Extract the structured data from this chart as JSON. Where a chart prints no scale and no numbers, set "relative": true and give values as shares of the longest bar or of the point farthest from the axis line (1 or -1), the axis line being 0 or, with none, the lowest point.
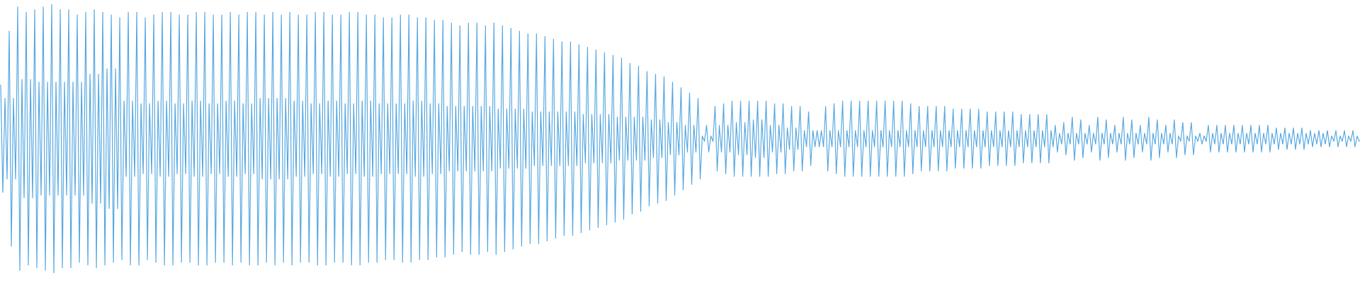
{
  "chart_data": {
    "type": "line",
    "relative": true,
    "color": "#5dabe2",
    "categories": [
      null,
      null,
      null,
      null,
      null,
      null,
      null,
      null,
      null,
      null,
      null,
      null,
      null,
      null,
      null,
      null,
      null,
      null,
      null,
      null,
      null,
      null,
      null,
      null,
      null,
      null,
      null,
      null,
      null,
      null,
      null,
      null,
      null,
      null,
      null,
      null,
      null,
      null,
      null,
      null,
      null,
      null,
      null,
      null,
      null,
      null,
      null,
      null,
      null,
      null,
      null,
      null,
      null,
      null,
      null,
      null,
      null,
      null,
      null,
      null,
      null,
      null,
      null,
      null,
      null,
      null,
      null,
      null,
      null,
      null,
      null,
      null,
      null,
      null,
      null,
      null,
      null,
      null,
      null,
      null,
      null,
      null,
      null,
      null,
      null,
      null,
      null,
      null,
      null,
      null,
      null,
      null,
      null,
      null,
      null,
      null,
      null,
      null,
      null,
      null,
      null,
      null,
      null,
      null,
      null,
      null,
      null,
      null,
      null,
      null,
      null,
      null,
      null,
      null,
      null,
      null,
      null,
      null,
      null,
      null,
      null,
      null,
      null,
      null,
      null,
      null,
      null,
      null,
      null,
      null,
      null,
      null,
      null,
      null,
      null,
      null,
      null,
      null,
      null,
      null,
      null,
      null,
      null,
      null,
      null,
      null,
      null,
      null,
      null,
      null,
      null,
      null,
      null,
      null,
      null,
      null,
      null,
      null,
      null,
      null,
      null,
      null,
      null,
      null,
      null,
      null,
      null,
      null,
      null,
      null,
      null,
      null,
      null,
      null,
      null,
      null,
      null,
      null,
      null,
      null,
      null,
      null,
      null,
      null,
      null,
      null,
      null,
      null,
      null,
      null,
      null,
      null,
      null,
      null,
      null,
      null,
      null,
      null,
      null,
      null,
      null,
      null,
      null,
      null,
      null,
      null,
      null,
      null,
      null,
      null,
      null,
      null,
      null,
      null,
      null,
      null,
      null,
      null,
      null,
      null,
      null,
      null,
      null,
      null,
      null,
      null,
      null,
      null,
      null,
      null,
      null,
      null,
      null,
      null,
      null,
      null,
      null,
      null,
      null,
      null,
      null,
      null,
      null,
      null,
      null,
      null,
      null,
      null,
      null,
      null,
      null,
      null,
      null,
      null,
      null,
      null,
      null,
      null,
      null,
      null,
      null,
      null,
      null,
      null,
      null,
      null,
      null,
      null,
      null,
      null,
      null,
      null,
      null,
      null,
      null,
      null,
      null,
      null,
      null,
      null,
      null,
      null,
      null,
      null,
      null,
      null,
      null,
      null,
      null,
      null,
      null,
      null,
      null,
      null,
      null,
      null,
      null,
      null,
      null,
      null,
      null,
      null,
      null,
      null,
      null,
      null,
      null,
      null,
      null,
      null,
      null,
      null,
      null,
      null,
      null,
      null,
      null,
      null,
      null,
      null,
      null,
      null,
      null,
      null,
      null,
      null,
      null,
      null,
      null,
      null,
      null,
      null,
      null,
      null,
      null,
      null,
      null,
      null,
      null,
      null,
      null,
      null,
      null,
      null,
      null,
      null,
      null,
      null,
      null,
      null,
      null,
      null,
      null,
      null,
      null,
      null,
      null,
      null,
      null,
      null,
      null,
      null,
      null,
      null,
      null,
      null,
      null,
      null,
      null,
      null,
      null,
      null,
      null,
      null,
      null,
      null,
      null,
      null,
      null,
      null,
      null,
      null,
      null,
      null,
      null,
      null,
      null,
      null,
      null,
      null,
      null,
      null,
      null,
      null,
      null,
      null,
      null,
      null,
      null,
      null,
      null,
      null,
      null,
      null,
      null,
      null,
      null,
      null,
      null,
      null,
      null,
      null,
      null,
      null,
      null,
      null,
      null,
      null,
      null,
      null,
      null,
      null,
      null,
      null,
      null,
      null,
      null,
      null,
      null,
      null,
      null,
      null,
      null,
      null,
      null,
      null,
      null,
      null,
      null,
      null,
      null,
      null,
      null,
      null,
      null,
      null,
      null,
      null,
      null,
      null,
      null,
      null,
      null,
      null,
      null,
      null,
      null,
      null,
      null,
      null,
      null,
      null,
      null,
      null,
      null,
      null,
      null,
      null,
      null,
      null,
      null,
      null,
      null,
      null,
      null,
      null,
      null,
      null,
      null,
      null,
      null,
      null,
      null,
      null,
      null,
      null,
      null,
      null,
      null,
      null,
      null,
      null,
      null,
      null,
      null,
      null,
      null,
      null,
      null,
      null,
      null,
      null,
      null,
      null,
      null,
      null,
      null,
      null,
      null,
      null,
      null,
      null,
      null,
      null,
      null,
      null,
      null,
      null,
      null,
      null,
      null,
      null,
      null,
      null,
      null,
      null,
      null,
      null,
      null,
      null,
      null,
      null,
      null,
      null,
      null,
      null,
      null,
      null,
      null,
      null,
      null,
      null,
      null,
      null,
      null,
      null,
      null,
      null,
      null,
      null,
      null,
      null,
      null,
      null,
      null,
      null,
      null,
      null,
      null,
      null,
      null,
      null,
      null,
      null,
      null,
      null,
      null,
      null,
      null,
      null,
      null,
      null,
      null,
      null,
      null,
      null,
      null,
      null,
      null,
      null,
      null,
      null,
      null,
      null,
      null,
      null,
      null,
      null,
      null,
      null,
      null,
      null,
      null,
      null,
      null,
      null,
      null,
      null,
      null,
      null,
      null,
      null,
      null,
      null,
      null,
      null,
      null,
      null,
      null,
      null,
      null,
      null,
      null,
      null,
      null,
      null,
      null,
      null,
      null,
      null,
      null,
      null,
      null,
      null,
      null,
      null,
      null,
      null,
      null,
      null,
      null,
      null,
      null,
      null,
      null,
      null,
      null,
      null,
      null,
      null
    ],
    "values": [
      0.7,
      0.3,
      0.65,
      0.35,
      0.9,
      0.1,
      0.65,
      0.35,
      0.99,
      0.01,
      0.72,
      0.28,
      0.97,
      0.03,
      0.72,
      0.28,
      0.98,
      0.02,
      0.71,
      0.29,
      0.99,
      0.01,
      0.71,
      0.29,
      1.0,
      0.0,
      0.71,
      0.29,
      0.98,
      0.02,
      0.71,
      0.29,
      0.98,
      0.02,
      0.71,
      0.29,
      0.96,
      0.04,
      0.71,
      0.29,
      0.97,
      0.03,
      0.74,
      0.26,
      0.98,
      0.02,
      0.74,
      0.26,
      0.97,
      0.03,
      0.76,
      0.24,
      0.96,
      0.04,
      0.76,
      0.24,
      0.95,
      0.05,
      0.64,
      0.36,
      0.97,
      0.03,
      0.64,
      0.36,
      0.97,
      0.03,
      0.63,
      0.37,
      0.95,
      0.05,
      0.63,
      0.37,
      0.96,
      0.04,
      0.64,
      0.36,
      0.97,
      0.03,
      0.64,
      0.36,
      0.97,
      0.03,
      0.63,
      0.37,
      0.96,
      0.04,
      0.63,
      0.37,
      0.96,
      0.04,
      0.64,
      0.36,
      0.97,
      0.03,
      0.64,
      0.36,
      0.97,
      0.03,
      0.63,
      0.37,
      0.96,
      0.04,
      0.63,
      0.37,
      0.96,
      0.04,
      0.64,
      0.36,
      0.97,
      0.03,
      0.64,
      0.36,
      0.96,
      0.04,
      0.63,
      0.37,
      0.97,
      0.03,
      0.63,
      0.37,
      0.97,
      0.03,
      0.65,
      0.35,
      0.96,
      0.04,
      0.65,
      0.35,
      0.97,
      0.03,
      0.65,
      0.35,
      0.96,
      0.04,
      0.65,
      0.35,
      0.97,
      0.03,
      0.64,
      0.36,
      0.96,
      0.04,
      0.64,
      0.36,
      0.96,
      0.04,
      0.63,
      0.37,
      0.97,
      0.03,
      0.63,
      0.37,
      0.97,
      0.03,
      0.64,
      0.36,
      0.96,
      0.04,
      0.64,
      0.36,
      0.96,
      0.04,
      0.63,
      0.37,
      0.97,
      0.03,
      0.63,
      0.37,
      0.97,
      0.03,
      0.64,
      0.36,
      0.96,
      0.04,
      0.64,
      0.36,
      0.96,
      0.04,
      0.63,
      0.37,
      0.95,
      0.05,
      0.63,
      0.37,
      0.95,
      0.05,
      0.63,
      0.37,
      0.96,
      0.04,
      0.63,
      0.37,
      0.96,
      0.04,
      0.64,
      0.36,
      0.95,
      0.05,
      0.64,
      0.36,
      0.95,
      0.05,
      0.63,
      0.37,
      0.94,
      0.06,
      0.63,
      0.37,
      0.94,
      0.06,
      0.62,
      0.38,
      0.93,
      0.07,
      0.62,
      0.38,
      0.92,
      0.08,
      0.62,
      0.38,
      0.93,
      0.07,
      0.62,
      0.38,
      0.93,
      0.07,
      0.62,
      0.38,
      0.92,
      0.08,
      0.62,
      0.38,
      0.93,
      0.07,
      0.61,
      0.39,
      0.92,
      0.08,
      0.61,
      0.39,
      0.91,
      0.09,
      0.61,
      0.39,
      0.9,
      0.1,
      0.61,
      0.39,
      0.89,
      0.11,
      0.6,
      0.4,
      0.89,
      0.11,
      0.6,
      0.4,
      0.88,
      0.12,
      0.6,
      0.4,
      0.87,
      0.13,
      0.6,
      0.4,
      0.86,
      0.14,
      0.6,
      0.4,
      0.86,
      0.14,
      0.6,
      0.4,
      0.85,
      0.15,
      0.59,
      0.41,
      0.84,
      0.16,
      0.59,
      0.41,
      0.83,
      0.17,
      0.59,
      0.41,
      0.82,
      0.18,
      0.59,
      0.41,
      0.81,
      0.19,
      0.58,
      0.42,
      0.8,
      0.2,
      0.58,
      0.42,
      0.78,
      0.22,
      0.58,
      0.42,
      0.77,
      0.23,
      0.58,
      0.42,
      0.75,
      0.25,
      0.57,
      0.43,
      0.74,
      0.26,
      0.57,
      0.43,
      0.73,
      0.27,
      0.56,
      0.44,
      0.71,
      0.29,
      0.56,
      0.44,
      0.69,
      0.31,
      0.55,
      0.45,
      0.67,
      0.33,
      0.55,
      0.45,
      0.65,
      0.35,
      0.51,
      0.49,
      0.55,
      0.45,
      0.51,
      0.49,
      0.62,
      0.38,
      0.55,
      0.45,
      0.63,
      0.37,
      0.55,
      0.45,
      0.64,
      0.36,
      0.56,
      0.44,
      0.64,
      0.36,
      0.56,
      0.44,
      0.64,
      0.36,
      0.57,
      0.43,
      0.64,
      0.36,
      0.57,
      0.43,
      0.64,
      0.36,
      0.55,
      0.45,
      0.63,
      0.37,
      0.55,
      0.45,
      0.63,
      0.37,
      0.54,
      0.46,
      0.62,
      0.38,
      0.54,
      0.46,
      0.62,
      0.38,
      0.53,
      0.47,
      0.6,
      0.4,
      0.53,
      0.47,
      0.53,
      0.47,
      0.53,
      0.47,
      0.62,
      0.38,
      0.53,
      0.47,
      0.63,
      0.37,
      0.53,
      0.47,
      0.64,
      0.36,
      0.53,
      0.47,
      0.64,
      0.36,
      0.53,
      0.47,
      0.64,
      0.36,
      0.53,
      0.47,
      0.64,
      0.36,
      0.53,
      0.47,
      0.64,
      0.36,
      0.53,
      0.47,
      0.64,
      0.36,
      0.53,
      0.47,
      0.64,
      0.36,
      0.53,
      0.47,
      0.64,
      0.36,
      0.53,
      0.47,
      0.63,
      0.37,
      0.53,
      0.47,
      0.62,
      0.38,
      0.53,
      0.47,
      0.62,
      0.38,
      0.53,
      0.47,
      0.62,
      0.38,
      0.53,
      0.47,
      0.62,
      0.38,
      0.53,
      0.47,
      0.61,
      0.39,
      0.53,
      0.47,
      0.61,
      0.39,
      0.53,
      0.47,
      0.61,
      0.39,
      0.53,
      0.47,
      0.61,
      0.39,
      0.53,
      0.47,
      0.6,
      0.4,
      0.53,
      0.47,
      0.6,
      0.4,
      0.53,
      0.47,
      0.6,
      0.4,
      0.53,
      0.47,
      0.6,
      0.4,
      0.53,
      0.47,
      0.59,
      0.41,
      0.53,
      0.47,
      0.59,
      0.41,
      0.53,
      0.47,
      0.59,
      0.41,
      0.53,
      0.47,
      0.59,
      0.41,
      0.53,
      0.47,
      0.55,
      0.45,
      0.52,
      0.48,
      0.56,
      0.44,
      0.52,
      0.48,
      0.58,
      0.42,
      0.52,
      0.48,
      0.57,
      0.43,
      0.52,
      0.48,
      0.55,
      0.45,
      0.52,
      0.48,
      0.58,
      0.42,
      0.52,
      0.48,
      0.57,
      0.43,
      0.52,
      0.48,
      0.55,
      0.45,
      0.52,
      0.48,
      0.58,
      0.42,
      0.52,
      0.48,
      0.57,
      0.43,
      0.52,
      0.48,
      0.55,
      0.45,
      0.52,
      0.48,
      0.58,
      0.42,
      0.52,
      0.48,
      0.57,
      0.43,
      0.52,
      0.48,
      0.55,
      0.45,
      0.52,
      0.48,
      0.57,
      0.43,
      0.51,
      0.49,
      0.56,
      0.44,
      0.51,
      0.49,
      0.56,
      0.44,
      0.51,
      0.49,
      0.52,
      0.48,
      0.51,
      0.49,
      0.55,
      0.45,
      0.52,
      0.48,
      0.55,
      0.45,
      0.52,
      0.48,
      0.55,
      0.45,
      0.52,
      0.48,
      0.55,
      0.45,
      0.52,
      0.48,
      0.55,
      0.45,
      0.52,
      0.48,
      0.55,
      0.45,
      0.52,
      0.48,
      0.55,
      0.45,
      0.52,
      0.48,
      0.55,
      0.45,
      0.52,
      0.48,
      0.54,
      0.46,
      0.52,
      0.48,
      0.54,
      0.46,
      0.52,
      0.48,
      0.54,
      0.46,
      0.52,
      0.48,
      0.54,
      0.46,
      0.52,
      0.48,
      0.53,
      0.47,
      0.52,
      0.48,
      0.53,
      0.47,
      0.52,
      0.48,
      0.53,
      0.47,
      0.51,
      0.49,
      0.53,
      0.47,
      0.51,
      0.49,
      0.53,
      0.47,
      0.51,
      0.49,
      0.53,
      0.47,
      0.51,
      0.49
    ]
  }
}
